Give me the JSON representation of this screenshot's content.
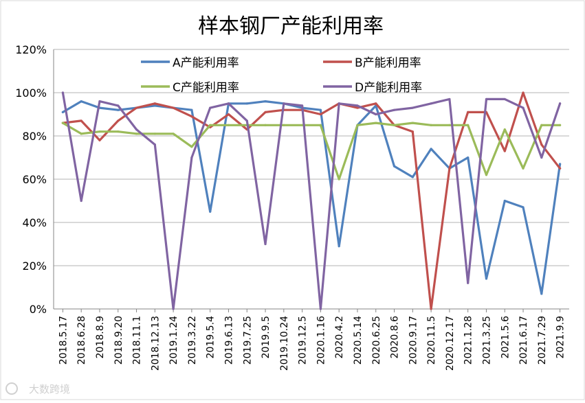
{
  "chart_data": {
    "type": "line",
    "title": "样本钢厂产能利用率",
    "xlabel": "",
    "ylabel": "",
    "ylim": [
      0,
      120
    ],
    "y_unit": "%",
    "grid": true,
    "legend_position": "top",
    "y_ticks": [
      "0%",
      "20%",
      "40%",
      "60%",
      "80%",
      "100%",
      "120%"
    ],
    "categories": [
      "2018.5.17",
      "2018.6.28",
      "2018.8.9",
      "2018.9.20",
      "2018.11.1",
      "2018.12.13",
      "2019.1.24",
      "2019.3.22",
      "2019.5.4",
      "2019.6.13",
      "2019.7.25",
      "2019.9.5",
      "2019.10.24",
      "2019.12.5",
      "2020.1.16",
      "2020.4.2",
      "2020.5.14",
      "2020.6.25",
      "2020.8.6",
      "2020.9.17",
      "2020.11.5",
      "2020.12.17",
      "2021.1.28",
      "2021.3.25",
      "2021.5.6",
      "2021.6.17",
      "2021.7.29",
      "2021.9.9"
    ],
    "series": [
      {
        "name": "A产能利用率",
        "color": "#4F81BD",
        "values": [
          91,
          96,
          93,
          92,
          93,
          94,
          93,
          92,
          45,
          95,
          95,
          96,
          95,
          93,
          92,
          29,
          85,
          94,
          66,
          61,
          74,
          65,
          70,
          14,
          50,
          47,
          7,
          67
        ]
      },
      {
        "name": "B产能利用率",
        "color": "#C0504D",
        "values": [
          86,
          87,
          78,
          87,
          93,
          95,
          93,
          89,
          84,
          90,
          83,
          91,
          92,
          92,
          90,
          95,
          93,
          95,
          85,
          82,
          0,
          65,
          91,
          91,
          73,
          100,
          76,
          65
        ]
      },
      {
        "name": "C产能利用率",
        "color": "#9BBB59",
        "values": [
          86,
          81,
          82,
          82,
          81,
          81,
          81,
          75,
          85,
          85,
          85,
          85,
          85,
          85,
          85,
          60,
          85,
          86,
          85,
          86,
          85,
          85,
          85,
          62,
          83,
          65,
          85,
          85
        ]
      },
      {
        "name": "D产能利用率",
        "color": "#8064A2",
        "values": [
          100,
          50,
          96,
          94,
          83,
          76,
          0,
          70,
          93,
          95,
          87,
          30,
          95,
          94,
          0,
          95,
          94,
          90,
          92,
          93,
          95,
          97,
          12,
          97,
          97,
          93,
          70,
          95
        ]
      }
    ],
    "watermark": "大数跨境"
  }
}
